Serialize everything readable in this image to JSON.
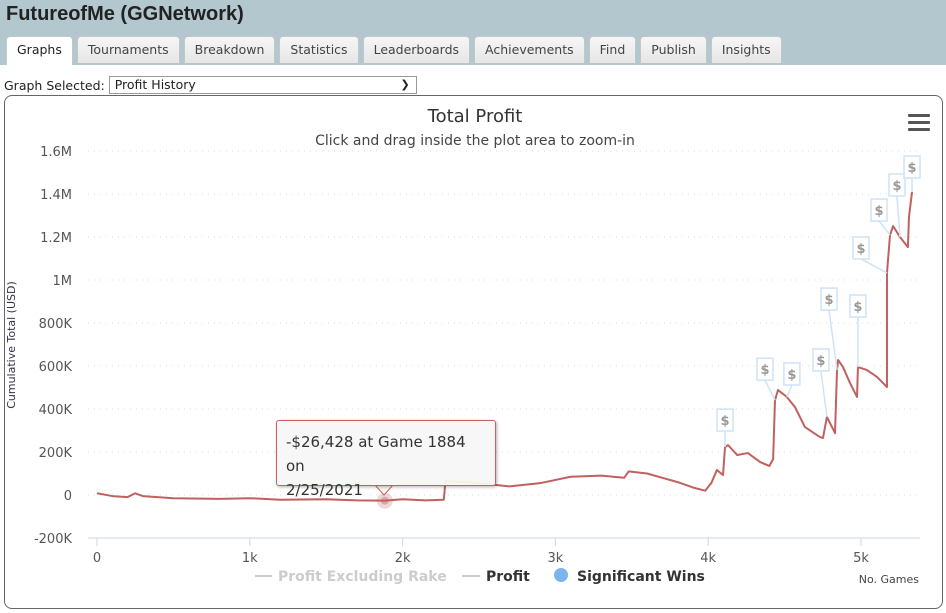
{
  "header": {
    "title": "FutureofMe (GGNetwork)"
  },
  "tabs": [
    {
      "label": "Graphs",
      "active": true
    },
    {
      "label": "Tournaments"
    },
    {
      "label": "Breakdown"
    },
    {
      "label": "Statistics"
    },
    {
      "label": "Leaderboards"
    },
    {
      "label": "Achievements"
    },
    {
      "label": "Find"
    },
    {
      "label": "Publish"
    },
    {
      "label": "Insights"
    }
  ],
  "graph_select": {
    "label": "Graph Selected:",
    "value": "Profit History"
  },
  "menu_icon": "hamburger-icon",
  "tooltip": {
    "line1": "-$26,428 at Game 1884 on",
    "line2": "2/25/2021"
  },
  "chart_data": {
    "type": "line",
    "title": "Total Profit",
    "subtitle": "Click and drag inside the plot area to zoom-in",
    "ylabel": "Cumulative Total (USD)",
    "xlabel": "No. Games",
    "xlim": [
      0,
      5400
    ],
    "ylim": [
      -200000,
      1600000
    ],
    "xticks": [
      {
        "v": 0,
        "label": "0"
      },
      {
        "v": 1000,
        "label": "1k"
      },
      {
        "v": 2000,
        "label": "2k"
      },
      {
        "v": 3000,
        "label": "3k"
      },
      {
        "v": 4000,
        "label": "4k"
      },
      {
        "v": 5000,
        "label": "5k"
      }
    ],
    "yticks": [
      {
        "v": -200000,
        "label": "-200K"
      },
      {
        "v": 0,
        "label": "0"
      },
      {
        "v": 200000,
        "label": "200K"
      },
      {
        "v": 400000,
        "label": "400K"
      },
      {
        "v": 600000,
        "label": "600K"
      },
      {
        "v": 800000,
        "label": "800K"
      },
      {
        "v": 1000000,
        "label": "1M"
      },
      {
        "v": 1200000,
        "label": "1.2M"
      },
      {
        "v": 1400000,
        "label": "1.4M"
      },
      {
        "v": 1600000,
        "label": "1.6M"
      }
    ],
    "grid": true,
    "legend_position": "bottom",
    "colors": {
      "profit": "#c0605f",
      "significant_wins": "#7cb5ec"
    },
    "legend": [
      {
        "name": "Profit Excluding Rake",
        "hidden": true
      },
      {
        "name": "Profit"
      },
      {
        "name": "Significant Wins"
      }
    ],
    "series": [
      {
        "name": "Profit",
        "points": [
          [
            0,
            8000
          ],
          [
            100,
            -5000
          ],
          [
            200,
            -10000
          ],
          [
            250,
            8000
          ],
          [
            300,
            -5000
          ],
          [
            500,
            -15000
          ],
          [
            800,
            -18000
          ],
          [
            1000,
            -15000
          ],
          [
            1200,
            -22000
          ],
          [
            1500,
            -20000
          ],
          [
            1700,
            -25000
          ],
          [
            1884,
            -26428
          ],
          [
            2000,
            -20000
          ],
          [
            2150,
            -25000
          ],
          [
            2270,
            -22000
          ],
          [
            2280,
            65000
          ],
          [
            2500,
            55000
          ],
          [
            2700,
            40000
          ],
          [
            2900,
            55000
          ],
          [
            3000,
            70000
          ],
          [
            3100,
            85000
          ],
          [
            3300,
            90000
          ],
          [
            3450,
            80000
          ],
          [
            3480,
            110000
          ],
          [
            3600,
            100000
          ],
          [
            3700,
            80000
          ],
          [
            3800,
            60000
          ],
          [
            3900,
            35000
          ],
          [
            3980,
            20000
          ],
          [
            4020,
            55000
          ],
          [
            4057,
            116000
          ],
          [
            4097,
            93000
          ],
          [
            4110,
            223000
          ],
          [
            4130,
            232000
          ],
          [
            4190,
            186000
          ],
          [
            4260,
            195000
          ],
          [
            4340,
            153000
          ],
          [
            4400,
            135000
          ],
          [
            4425,
            167000
          ],
          [
            4437,
            441000
          ],
          [
            4457,
            488000
          ],
          [
            4515,
            456000
          ],
          [
            4568,
            409000
          ],
          [
            4633,
            316000
          ],
          [
            4730,
            270000
          ],
          [
            4751,
            265000
          ],
          [
            4777,
            363000
          ],
          [
            4830,
            288000
          ],
          [
            4843,
            581000
          ],
          [
            4850,
            628000
          ],
          [
            4882,
            595000
          ],
          [
            4928,
            521000
          ],
          [
            4974,
            456000
          ],
          [
            4980,
            595000
          ],
          [
            5039,
            581000
          ],
          [
            5105,
            549000
          ],
          [
            5170,
            502000
          ],
          [
            5170,
            1033000
          ],
          [
            5190,
            1209000
          ],
          [
            5210,
            1251000
          ],
          [
            5255,
            1200000
          ],
          [
            5307,
            1153000
          ],
          [
            5314,
            1293000
          ],
          [
            5334,
            1409000
          ]
        ]
      }
    ],
    "significant_wins": [
      {
        "x": 4110,
        "y": 223000
      },
      {
        "x": 4437,
        "y": 441000
      },
      {
        "x": 4515,
        "y": 456000
      },
      {
        "x": 4777,
        "y": 363000
      },
      {
        "x": 4843,
        "y": 581000
      },
      {
        "x": 4980,
        "y": 595000
      },
      {
        "x": 5170,
        "y": 1033000
      },
      {
        "x": 5190,
        "y": 1209000
      },
      {
        "x": 5255,
        "y": 1200000
      },
      {
        "x": 5334,
        "y": 1409000
      }
    ],
    "flag_label": "$",
    "highlighted_point": {
      "x": 1884,
      "y": -26428
    }
  }
}
